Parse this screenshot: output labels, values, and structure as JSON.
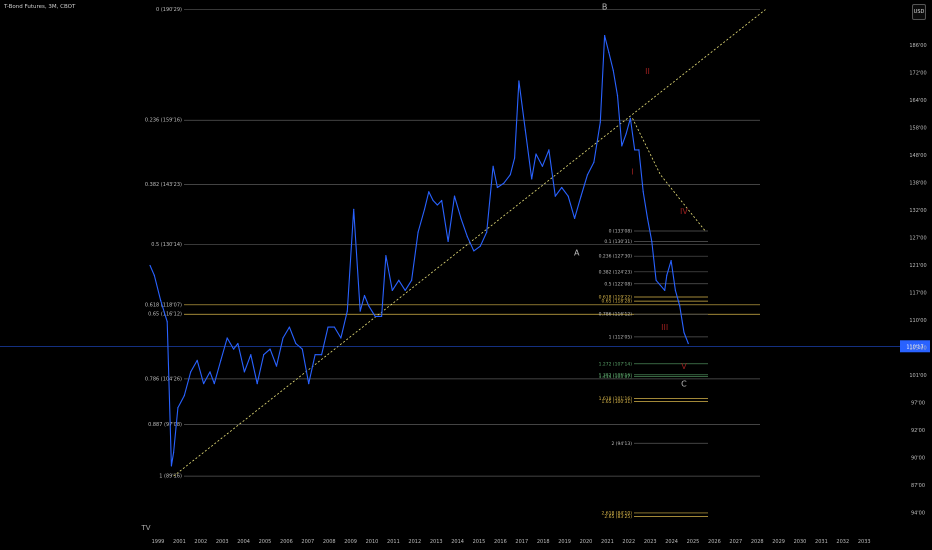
{
  "title": "T-Bond Futures, 3M, CBOT",
  "unit_label": "USD",
  "colors": {
    "background": "#000000",
    "price": "#2962ff",
    "grid_line": "#5a5a5a",
    "trend": "#e8e07a",
    "wave_label": "#9b2020",
    "label": "#bcbcbc",
    "yellow": "#d8b64a",
    "green": "#5aa36a",
    "current_price": "#2962ff"
  },
  "chart_data": {
    "type": "line",
    "title": "T-Bond Futures, 3M, CBOT",
    "x_label": "",
    "y_label": "",
    "y_range": [
      94.0,
      189.0
    ],
    "x_range": [
      1999.0,
      2033.6
    ],
    "y_scale": "log",
    "grid": false,
    "y_ticks": [
      "186'00",
      "172'00",
      "164'00",
      "158'00",
      "148'00",
      "138'00",
      "132'00",
      "127'00",
      "121'00",
      "117'00",
      "110'00",
      "105'00",
      "101'00",
      "97'00",
      "92'00",
      "90'00",
      "87'00",
      "94'00"
    ],
    "x_ticks": [
      "1999",
      "2001",
      "2002",
      "2003",
      "2004",
      "2005",
      "2006",
      "2007",
      "2008",
      "2009",
      "2010",
      "2011",
      "2012",
      "2013",
      "2014",
      "2015",
      "2016",
      "2017",
      "2018",
      "2019",
      "2020",
      "2021",
      "2022",
      "2023",
      "2024",
      "2025",
      "2026",
      "2027",
      "2028",
      "2029",
      "2030",
      "2031",
      "2032",
      "2033"
    ],
    "series": [
      {
        "name": "",
        "x": [
          1999.0,
          1999.2,
          1999.5,
          1999.8,
          2000.0,
          2000.1,
          2000.3,
          2000.6,
          2000.9,
          2001.2,
          2001.5,
          2001.8,
          2002.0,
          2002.3,
          2002.6,
          2002.9,
          2003.1,
          2003.4,
          2003.7,
          2004.0,
          2004.3,
          2004.6,
          2004.9,
          2005.2,
          2005.5,
          2005.8,
          2006.1,
          2006.4,
          2006.7,
          2007.0,
          2007.3,
          2007.6,
          2007.9,
          2008.2,
          2008.5,
          2008.8,
          2009.0,
          2009.2,
          2009.5,
          2009.8,
          2010.0,
          2010.3,
          2010.6,
          2010.9,
          2011.2,
          2011.5,
          2011.8,
          2012.0,
          2012.2,
          2012.4,
          2012.6,
          2012.9,
          2013.2,
          2013.5,
          2013.8,
          2014.1,
          2014.4,
          2014.7,
          2015.0,
          2015.2,
          2015.5,
          2015.8,
          2016.0,
          2016.2,
          2016.5,
          2016.8,
          2017.0,
          2017.3,
          2017.6,
          2017.9,
          2018.2,
          2018.5,
          2018.8,
          2019.1,
          2019.4,
          2019.7,
          2020.0,
          2020.2,
          2020.4,
          2020.6,
          2020.8,
          2021.0,
          2021.2,
          2021.4,
          2021.6,
          2021.8,
          2022.0,
          2022.2,
          2022.4,
          2022.6,
          2022.8,
          2023.0,
          2023.1,
          2023.3,
          2023.5,
          2023.7,
          2023.9,
          2024.1
        ],
        "y": [
          126,
          124,
          119,
          115,
          91,
          93,
          100,
          102,
          106,
          108,
          104,
          106,
          104,
          108,
          112,
          110,
          111,
          106,
          109,
          104,
          109,
          110,
          107,
          112,
          114,
          111,
          110,
          104,
          109,
          109,
          114,
          114,
          112,
          117,
          138,
          117,
          120,
          118,
          116,
          116,
          128,
          121,
          123,
          121,
          123,
          133,
          138,
          142,
          140,
          139,
          140,
          131,
          141,
          136,
          132,
          129,
          130,
          133,
          148,
          143,
          144,
          146,
          150,
          170,
          157,
          145,
          151,
          148,
          152,
          141,
          143,
          141,
          136,
          141,
          146,
          149,
          159,
          183,
          178,
          173,
          166,
          153,
          156,
          160,
          152,
          152,
          142,
          136,
          131,
          123,
          122,
          121,
          124,
          127,
          121,
          118,
          113,
          111
        ]
      }
    ],
    "fib_levels_left": [
      {
        "label": "0 (190'29)",
        "value": 190.9
      },
      {
        "label": "0.236 (159'16)",
        "value": 159.5
      },
      {
        "label": "0.382 (143'23)",
        "value": 143.7
      },
      {
        "label": "0.5 (130'14)",
        "value": 130.4
      },
      {
        "label": "0.618 (118'07)",
        "value": 118.2
      },
      {
        "label": "0.65 (116'12)",
        "value": 116.4
      },
      {
        "label": "0.786 (104'26)",
        "value": 104.8
      },
      {
        "label": "0.887 (97'08)",
        "value": 97.3
      },
      {
        "label": "1 (89'16)",
        "value": 89.5
      }
    ],
    "fib_levels_right": [
      {
        "label": "0 (133'08)",
        "value": 133.25
      },
      {
        "label": "0.1 (130'31)",
        "value": 130.97
      },
      {
        "label": "0.236 (127'30)",
        "value": 127.9
      },
      {
        "label": "0.382 (124'23)",
        "value": 124.7
      },
      {
        "label": "0.5 (122'08)",
        "value": 122.3
      },
      {
        "label": "0.618 (119'22)",
        "value": 119.7
      },
      {
        "label": "0.65 (118'28)",
        "value": 118.9
      },
      {
        "label": "0.786 (116'12)",
        "value": 116.4
      },
      {
        "label": "1 (112'05)",
        "value": 112.2
      },
      {
        "label": "1.272 (107'14)",
        "value": 107.4
      },
      {
        "label": "1.382 (105'16)",
        "value": 105.5
      },
      {
        "label": "1.414 (105'07)",
        "value": 105.2
      },
      {
        "label": "1.618 (101'16)",
        "value": 101.5
      },
      {
        "label": "1.65 (100'31)",
        "value": 101.0
      },
      {
        "label": "2 (94'13)",
        "value": 94.4
      },
      {
        "label": "2.618 (84'10)",
        "value": 84.3
      },
      {
        "label": "2.65 (83'25)",
        "value": 83.8
      }
    ],
    "wave_labels": [
      {
        "text": "B",
        "x": 2020.2,
        "y": 190.9,
        "color": "label"
      },
      {
        "text": "A",
        "x": 2018.9,
        "y": 128.0,
        "color": "label"
      },
      {
        "text": "I",
        "x": 2021.5,
        "y": 146.0,
        "color": "wave_label"
      },
      {
        "text": "II",
        "x": 2022.2,
        "y": 172.0,
        "color": "wave_label"
      },
      {
        "text": "III",
        "x": 2023.0,
        "y": 113.5,
        "color": "wave_label"
      },
      {
        "text": "IV",
        "x": 2023.9,
        "y": 137.0,
        "color": "wave_label"
      },
      {
        "text": "V",
        "x": 2023.9,
        "y": 106.5,
        "color": "wave_label"
      },
      {
        "text": "C",
        "x": 2023.9,
        "y": 103.5,
        "color": "label"
      }
    ],
    "trendlines": [
      {
        "x": [
          2000.1,
          2027.7
        ],
        "y": [
          89.5,
          190.9
        ]
      },
      {
        "x": [
          2021.5,
          2022.8,
          2024.9
        ],
        "y": [
          160.0,
          146.0,
          133.2
        ]
      }
    ],
    "current_price": {
      "label": "110'17",
      "value": 110.5
    },
    "corner_logo": "TV"
  }
}
